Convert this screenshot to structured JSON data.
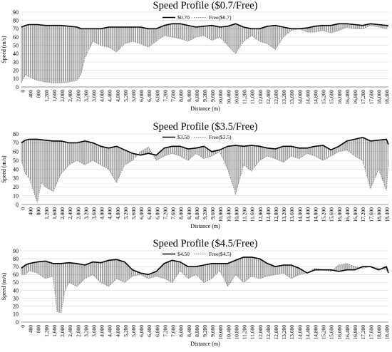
{
  "chart_data": [
    {
      "type": "line",
      "title": "Speed Profile ($0.7/Free)",
      "xlabel": "Distance (m)",
      "ylabel": "Speed (m/s)",
      "xlim": [
        0,
        18500
      ],
      "ylim": [
        0,
        90
      ],
      "yticks": [
        0,
        10,
        20,
        30,
        40,
        50,
        60,
        70,
        80,
        90
      ],
      "xtick_labels": [
        "0",
        "400",
        "800",
        "1,200",
        "1,600",
        "2,000",
        "2,400",
        "2,800",
        "3,200",
        "3,600",
        "4,000",
        "4,400",
        "4,800",
        "5,200",
        "5,600",
        "6,000",
        "6,400",
        "6,800",
        "7,200",
        "7,600",
        "8,000",
        "8,400",
        "8,800",
        "9,200",
        "9,600",
        "10,000",
        "10,400",
        "10,800",
        "11,200",
        "11,600",
        "12,000",
        "12,400",
        "12,800",
        "13,200",
        "13,600",
        "14,000",
        "14,400",
        "14,800",
        "15,200",
        "15,600",
        "16,000",
        "16,400",
        "16,800",
        "17,200",
        "17,600",
        "18,000",
        "18,400"
      ],
      "legend": "top-right",
      "series": [
        {
          "name": "$0.70",
          "color": "#000000",
          "style": "solid",
          "x": [
            0,
            200,
            400,
            800,
            1200,
            1600,
            2000,
            2400,
            2800,
            3000,
            3200,
            3600,
            4000,
            4400,
            4800,
            5200,
            5600,
            6000,
            6400,
            6800,
            7200,
            7600,
            8000,
            8400,
            8800,
            9200,
            9600,
            10000,
            10400,
            10800,
            11200,
            11600,
            12000,
            12400,
            12800,
            13200,
            13600,
            14000,
            14400,
            14800,
            15200,
            15600,
            16000,
            16400,
            16800,
            17200,
            17600,
            18000,
            18400,
            18500
          ],
          "y": [
            72,
            74,
            75,
            75,
            74,
            74,
            74,
            73,
            72,
            70,
            70,
            70,
            70,
            72,
            72,
            72,
            72,
            72,
            70,
            70,
            74,
            76,
            76,
            74,
            72,
            73,
            74,
            72,
            73,
            76,
            72,
            70,
            70,
            73,
            74,
            72,
            70,
            70,
            71,
            73,
            74,
            74,
            76,
            76,
            75,
            74,
            76,
            75,
            74,
            74
          ]
        },
        {
          "name": "Free($0.7)",
          "color": "#8c8c8c",
          "style": "dotted",
          "x": [
            0,
            200,
            400,
            800,
            1200,
            1600,
            2000,
            2400,
            2800,
            3000,
            3200,
            3600,
            4000,
            4400,
            4800,
            5200,
            5600,
            6000,
            6400,
            6800,
            7200,
            7600,
            8000,
            8400,
            8800,
            9200,
            9600,
            10000,
            10400,
            10800,
            11200,
            11600,
            12000,
            12400,
            12800,
            13200,
            13600,
            14000,
            14400,
            14800,
            15200,
            15600,
            16000,
            16400,
            16800,
            17200,
            17600,
            18000,
            18400,
            18500
          ],
          "y": [
            5,
            15,
            12,
            8,
            6,
            5,
            5,
            6,
            8,
            15,
            35,
            55,
            50,
            48,
            42,
            52,
            55,
            52,
            48,
            55,
            62,
            60,
            58,
            55,
            60,
            62,
            56,
            60,
            50,
            40,
            55,
            62,
            55,
            52,
            45,
            60,
            68,
            70,
            66,
            66,
            68,
            65,
            68,
            72,
            70,
            70,
            74,
            72,
            70,
            74
          ]
        }
      ]
    },
    {
      "type": "line",
      "title": "Speed Profile ($3.5/Free)",
      "xlabel": "Distance (m)",
      "ylabel": "Speed (m/s)",
      "xlim": [
        0,
        18500
      ],
      "ylim": [
        0,
        80
      ],
      "yticks": [
        0,
        10,
        20,
        30,
        40,
        50,
        60,
        70,
        80
      ],
      "xtick_labels": [
        "0",
        "400",
        "800",
        "1,200",
        "1,600",
        "2,000",
        "2,400",
        "2,800",
        "3,200",
        "3,600",
        "4,000",
        "4,400",
        "4,800",
        "5,200",
        "5,600",
        "6,000",
        "6,400",
        "6,800",
        "7,200",
        "7,600",
        "8,000",
        "8,400",
        "8,800",
        "9,200",
        "9,600",
        "10,000",
        "10,400",
        "10,800",
        "11,200",
        "11,600",
        "12,000",
        "12,400",
        "12,800",
        "13,200",
        "13,600",
        "14,000",
        "14,400",
        "14,800",
        "15,200",
        "15,600",
        "16,000",
        "16,400",
        "16,800",
        "17,200",
        "17,600",
        "18,000",
        "18,400"
      ],
      "legend": "top-right",
      "series": [
        {
          "name": "$3.50",
          "color": "#000000",
          "style": "solid",
          "x": [
            0,
            200,
            400,
            800,
            1200,
            1600,
            2000,
            2400,
            2800,
            3200,
            3600,
            4000,
            4400,
            4800,
            5200,
            5600,
            6000,
            6400,
            6800,
            7200,
            7600,
            8000,
            8400,
            8800,
            9200,
            9600,
            10000,
            10400,
            10800,
            11200,
            11600,
            12000,
            12400,
            12800,
            13200,
            13600,
            14000,
            14400,
            14800,
            15200,
            15600,
            16000,
            16400,
            16800,
            17200,
            17600,
            18000,
            18400,
            18500
          ],
          "y": [
            70,
            73,
            74,
            74,
            73,
            72,
            72,
            70,
            70,
            72,
            70,
            66,
            64,
            66,
            62,
            58,
            56,
            58,
            56,
            64,
            66,
            66,
            63,
            64,
            66,
            60,
            62,
            66,
            67,
            66,
            67,
            66,
            64,
            63,
            66,
            66,
            64,
            64,
            66,
            67,
            62,
            66,
            72,
            74,
            76,
            72,
            73,
            74,
            68
          ]
        },
        {
          "name": "Free($3.5)",
          "color": "#8c8c8c",
          "style": "dotted",
          "x": [
            0,
            200,
            400,
            800,
            1000,
            1200,
            1600,
            2000,
            2400,
            2800,
            3200,
            3600,
            4000,
            4400,
            4800,
            5200,
            5600,
            6000,
            6400,
            6800,
            7200,
            7600,
            8000,
            8400,
            8800,
            9200,
            9600,
            10000,
            10400,
            10800,
            11200,
            11600,
            12000,
            12400,
            12800,
            13200,
            13600,
            14000,
            14400,
            14800,
            15200,
            15600,
            16000,
            16400,
            16800,
            17200,
            17600,
            18000,
            18400,
            18500
          ],
          "y": [
            50,
            35,
            30,
            2,
            25,
            20,
            15,
            35,
            45,
            50,
            45,
            50,
            45,
            40,
            25,
            45,
            50,
            60,
            65,
            50,
            55,
            58,
            55,
            50,
            58,
            52,
            55,
            60,
            40,
            12,
            45,
            38,
            50,
            55,
            52,
            48,
            55,
            52,
            58,
            55,
            50,
            55,
            60,
            62,
            55,
            50,
            18,
            40,
            16,
            50
          ]
        }
      ]
    },
    {
      "type": "line",
      "title": "Speed Profile ($4.5/Free)",
      "xlabel": "Distance (m)",
      "ylabel": "Speed (m/s)",
      "xlim": [
        0,
        18500
      ],
      "ylim": [
        0,
        90
      ],
      "yticks": [
        0,
        10,
        20,
        30,
        40,
        50,
        60,
        70,
        80,
        90
      ],
      "xtick_labels": [
        "0",
        "400",
        "800",
        "1,200",
        "1,600",
        "2,000",
        "2,400",
        "2,800",
        "3,200",
        "3,600",
        "4,000",
        "4,400",
        "4,800",
        "5,200",
        "5,600",
        "6,000",
        "6,400",
        "6,800",
        "7,200",
        "7,600",
        "8,000",
        "8,400",
        "8,800",
        "9,200",
        "9,600",
        "10,000",
        "10,400",
        "10,800",
        "11,200",
        "11,600",
        "12,000",
        "12,400",
        "12,800",
        "13,200",
        "13,600",
        "14,000",
        "14,400",
        "14,800",
        "15,200",
        "15,600",
        "16,000",
        "16,400",
        "16,800",
        "17,200",
        "17,600",
        "18,000",
        "18,400"
      ],
      "legend": "top-right",
      "series": [
        {
          "name": "$4.50",
          "color": "#000000",
          "style": "solid",
          "x": [
            0,
            200,
            400,
            800,
            1200,
            1600,
            2000,
            2400,
            2800,
            3200,
            3600,
            4000,
            4400,
            4800,
            5200,
            5600,
            6000,
            6400,
            6800,
            7200,
            7600,
            8000,
            8400,
            8800,
            9200,
            9600,
            10000,
            10400,
            10800,
            11200,
            11600,
            12000,
            12400,
            12800,
            13200,
            13600,
            14000,
            14400,
            14800,
            15200,
            15600,
            16000,
            16400,
            16800,
            17200,
            17600,
            18000,
            18400,
            18500
          ],
          "y": [
            68,
            72,
            74,
            76,
            77,
            74,
            74,
            75,
            74,
            72,
            76,
            75,
            78,
            79,
            76,
            66,
            62,
            60,
            64,
            74,
            78,
            76,
            70,
            70,
            72,
            74,
            74,
            74,
            78,
            82,
            82,
            80,
            74,
            70,
            72,
            72,
            68,
            62,
            66,
            66,
            66,
            64,
            66,
            66,
            70,
            70,
            66,
            70,
            62
          ]
        },
        {
          "name": "Free($4.5)",
          "color": "#8c8c8c",
          "style": "dotted",
          "x": [
            0,
            200,
            400,
            800,
            1200,
            1600,
            1800,
            2000,
            2200,
            2400,
            2800,
            3200,
            3600,
            4000,
            4400,
            4800,
            5200,
            5600,
            6000,
            6400,
            6800,
            7200,
            7600,
            8000,
            8400,
            8800,
            9200,
            9600,
            10000,
            10400,
            10800,
            11200,
            11600,
            12000,
            12400,
            12800,
            13200,
            13600,
            14000,
            14400,
            14800,
            15200,
            15600,
            16000,
            16400,
            16800,
            17200,
            17600,
            18000,
            18400,
            18500
          ],
          "y": [
            60,
            60,
            65,
            62,
            55,
            58,
            13,
            12,
            40,
            50,
            45,
            55,
            60,
            50,
            45,
            55,
            50,
            58,
            60,
            55,
            58,
            55,
            50,
            65,
            55,
            60,
            50,
            55,
            65,
            45,
            60,
            50,
            58,
            55,
            58,
            60,
            62,
            55,
            60,
            62,
            68,
            66,
            64,
            72,
            74,
            70,
            68,
            70,
            68,
            66,
            62
          ]
        }
      ]
    }
  ]
}
